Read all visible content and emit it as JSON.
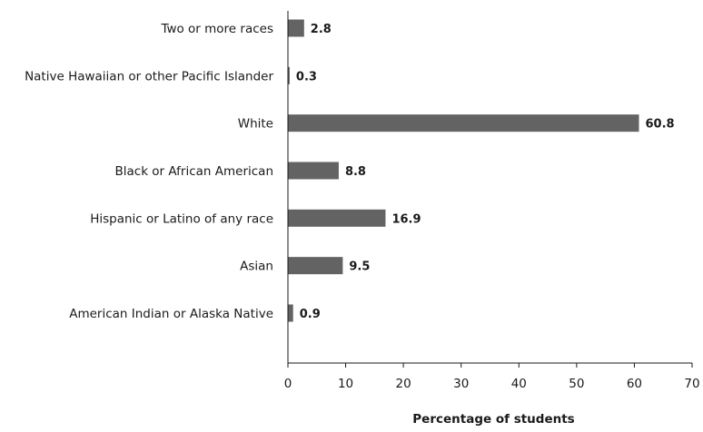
{
  "chart_data": {
    "type": "bar",
    "orientation": "horizontal",
    "categories": [
      "Two or more races",
      "Native Hawaiian or other Pacific Islander",
      "White",
      "Black or African American",
      "Hispanic or Latino of any race",
      "Asian",
      "American Indian or Alaska Native"
    ],
    "values": [
      2.8,
      0.3,
      60.8,
      8.8,
      16.9,
      9.5,
      0.9
    ],
    "value_labels": [
      "2.8",
      "0.3",
      "60.8",
      "8.8",
      "16.9",
      "9.5",
      "0.9"
    ],
    "xlabel": "Percentage of students",
    "ylabel": "",
    "xlim": [
      0,
      70
    ],
    "x_ticks": [
      0,
      10,
      20,
      30,
      40,
      50,
      60,
      70
    ],
    "grid": false,
    "legend": "none",
    "colors": {
      "bar": "#636363",
      "axis": "#1a1a1a",
      "text": "#1a1a1a"
    }
  }
}
